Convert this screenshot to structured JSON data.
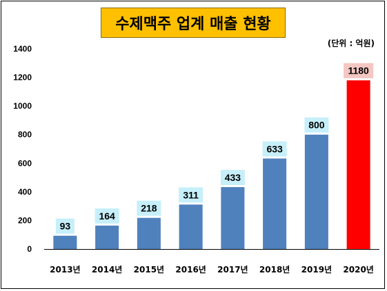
{
  "chart_data": {
    "type": "bar",
    "title": "수제맥주 업계 매출 현황",
    "unit_note": "(단위 : 억원)",
    "categories": [
      "2013년",
      "2014년",
      "2015년",
      "2016년",
      "2017년",
      "2018년",
      "2019년",
      "2020년"
    ],
    "values": [
      93,
      164,
      218,
      311,
      433,
      633,
      800,
      1180
    ],
    "value_labels": [
      "93",
      "164",
      "218",
      "311",
      "433",
      "633",
      "800",
      "1180"
    ],
    "ylim": [
      0,
      1400
    ],
    "yticks": [
      "0",
      "200",
      "400",
      "600",
      "800",
      "1000",
      "1200",
      "1400"
    ],
    "grid": false,
    "legend": "none",
    "colors": {
      "bar": "#4f81bd",
      "highlight_bar": "#ff0000",
      "label_bg": "#c6effa",
      "highlight_label_bg": "#f4c7c3",
      "title_bg": "#ffc000"
    },
    "highlight_index": 7
  }
}
